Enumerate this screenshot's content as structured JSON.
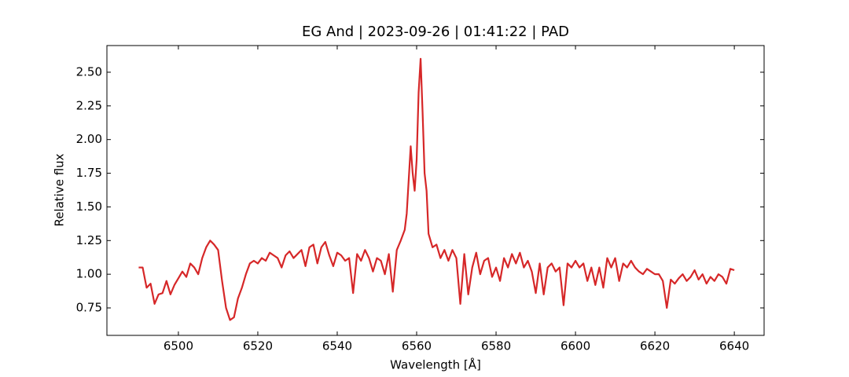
{
  "chart_data": {
    "type": "line",
    "title": "EG And | 2023-09-26 | 01:41:22 | PAD",
    "x_label": "Wavelength [Å]",
    "y_label": "Relative flux",
    "x": [
      6490,
      6491,
      6492,
      6493,
      6494,
      6495,
      6496,
      6497,
      6498,
      6499,
      6500,
      6501,
      6502,
      6503,
      6504,
      6505,
      6506,
      6507,
      6508,
      6509,
      6510,
      6511,
      6512,
      6513,
      6514,
      6515,
      6516,
      6517,
      6518,
      6519,
      6520,
      6521,
      6522,
      6523,
      6524,
      6525,
      6526,
      6527,
      6528,
      6529,
      6530,
      6531,
      6532,
      6533,
      6534,
      6535,
      6536,
      6537,
      6538,
      6539,
      6540,
      6541,
      6542,
      6543,
      6544,
      6545,
      6546,
      6547,
      6548,
      6549,
      6550,
      6551,
      6552,
      6553,
      6554,
      6555,
      6556,
      6557,
      6557.5,
      6558,
      6558.5,
      6559,
      6559.5,
      6560,
      6560.5,
      6561,
      6561.5,
      6562,
      6562.5,
      6563,
      6564,
      6565,
      6566,
      6567,
      6568,
      6569,
      6570,
      6571,
      6572,
      6573,
      6574,
      6575,
      6576,
      6577,
      6578,
      6579,
      6580,
      6581,
      6582,
      6583,
      6584,
      6585,
      6586,
      6587,
      6588,
      6589,
      6590,
      6591,
      6592,
      6593,
      6594,
      6595,
      6596,
      6597,
      6598,
      6599,
      6600,
      6601,
      6602,
      6603,
      6604,
      6605,
      6606,
      6607,
      6608,
      6609,
      6610,
      6611,
      6612,
      6613,
      6614,
      6615,
      6616,
      6617,
      6618,
      6619,
      6620,
      6621,
      6622,
      6623,
      6624,
      6625,
      6626,
      6627,
      6628,
      6629,
      6630,
      6631,
      6632,
      6633,
      6634,
      6635,
      6636,
      6637,
      6638,
      6639,
      6640
    ],
    "series": [
      {
        "color": "#d62728",
        "values": [
          1.05,
          1.05,
          0.9,
          0.93,
          0.78,
          0.85,
          0.86,
          0.95,
          0.85,
          0.92,
          0.97,
          1.02,
          0.98,
          1.08,
          1.05,
          1.0,
          1.12,
          1.2,
          1.25,
          1.22,
          1.18,
          0.95,
          0.75,
          0.66,
          0.68,
          0.82,
          0.9,
          1.0,
          1.08,
          1.1,
          1.08,
          1.12,
          1.1,
          1.16,
          1.14,
          1.12,
          1.05,
          1.14,
          1.17,
          1.12,
          1.15,
          1.18,
          1.06,
          1.2,
          1.22,
          1.08,
          1.2,
          1.24,
          1.14,
          1.06,
          1.16,
          1.14,
          1.1,
          1.12,
          0.86,
          1.15,
          1.1,
          1.18,
          1.12,
          1.02,
          1.12,
          1.1,
          1.0,
          1.15,
          0.87,
          1.18,
          1.25,
          1.33,
          1.45,
          1.7,
          1.95,
          1.75,
          1.62,
          1.85,
          2.35,
          2.6,
          2.2,
          1.75,
          1.62,
          1.3,
          1.2,
          1.22,
          1.12,
          1.18,
          1.1,
          1.18,
          1.12,
          0.78,
          1.15,
          0.85,
          1.05,
          1.16,
          1.0,
          1.1,
          1.12,
          0.98,
          1.05,
          0.95,
          1.12,
          1.05,
          1.15,
          1.08,
          1.16,
          1.05,
          1.1,
          1.02,
          0.86,
          1.08,
          0.85,
          1.05,
          1.08,
          1.02,
          1.05,
          0.77,
          1.08,
          1.05,
          1.1,
          1.05,
          1.08,
          0.95,
          1.05,
          0.92,
          1.05,
          0.9,
          1.12,
          1.05,
          1.12,
          0.95,
          1.08,
          1.05,
          1.1,
          1.05,
          1.02,
          1.0,
          1.04,
          1.02,
          1.0,
          1.0,
          0.95,
          0.75,
          0.96,
          0.93,
          0.97,
          1.0,
          0.95,
          0.98,
          1.03,
          0.96,
          1.0,
          0.93,
          0.98,
          0.95,
          1.0,
          0.98,
          0.93,
          1.04,
          1.03
        ]
      }
    ],
    "xlim": [
      6482.0,
      6647.5
    ],
    "ylim": [
      0.546,
      2.698
    ],
    "xticks": [
      6500,
      6520,
      6540,
      6560,
      6580,
      6600,
      6620,
      6640
    ],
    "yticks": [
      0.75,
      {
        "value": 1,
        "label": "1.00"
      },
      1.25,
      {
        "value": 1.5,
        "label": "1.50"
      },
      1.75,
      {
        "value": 2,
        "label": "2.00"
      },
      2.25,
      {
        "value": 2.5,
        "label": "2.50"
      }
    ],
    "grid": false
  }
}
